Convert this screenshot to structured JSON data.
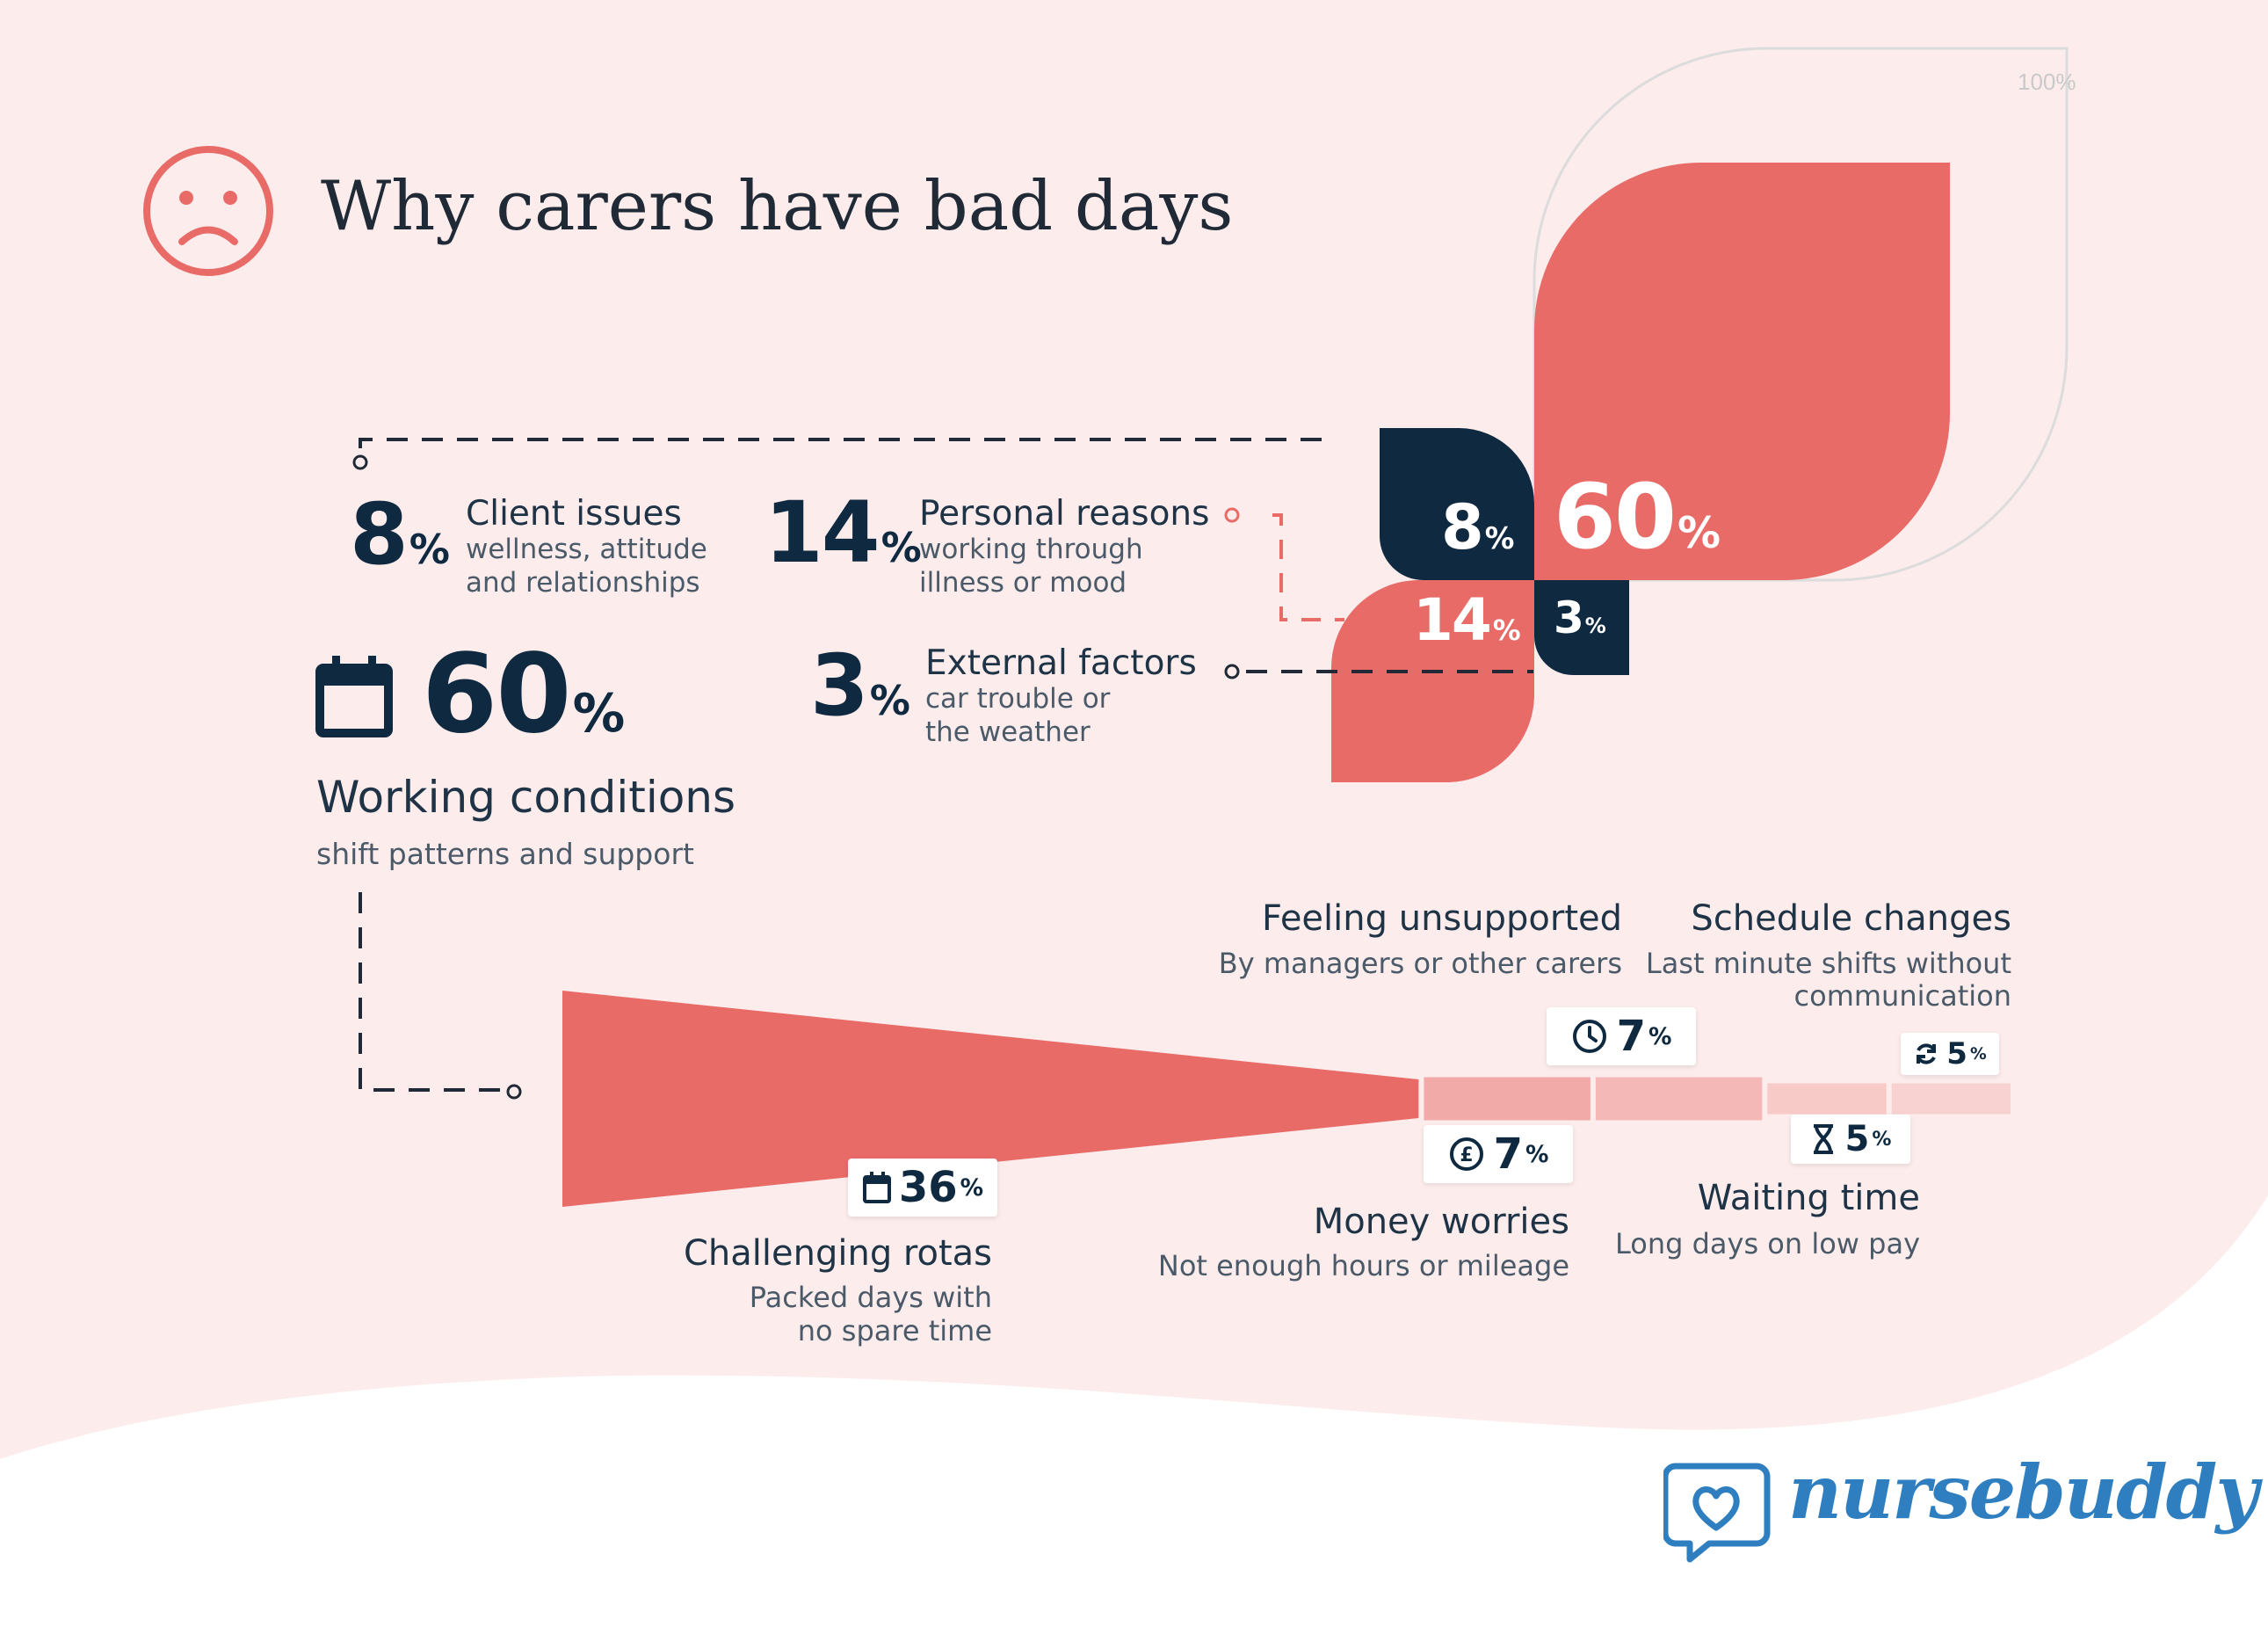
{
  "title": "Why carers have bad days",
  "colors": {
    "background": "#fdecec",
    "coral": "#e86b68",
    "navy": "#0f2a40",
    "pale_coral": "#f2aaa8",
    "paler_coral": "#f7c9c7",
    "text_dark": "#1f3346",
    "text_muted": "#4a5a68",
    "brand_blue": "#2f7fc0"
  },
  "icons": {
    "title": "sad-face-icon",
    "working_conditions": "calendar-icon",
    "challenging_rotas": "calendar-icon",
    "money_worries": "pound-coin-icon",
    "feeling_unsupported": "clock-icon",
    "waiting_time": "hourglass-icon",
    "schedule_changes": "refresh-icon"
  },
  "categories": {
    "client_issues": {
      "value": "8",
      "pct": "%",
      "label": "Client issues",
      "desc_1": "wellness, attitude",
      "desc_2": "and relationships"
    },
    "personal_reasons": {
      "value": "14",
      "pct": "%",
      "label": "Personal reasons",
      "desc_1": "working through",
      "desc_2": "illness or mood"
    },
    "working_conditions": {
      "value": "60",
      "pct": "%",
      "label": "Working conditions",
      "desc": "shift patterns and support"
    },
    "external_factors": {
      "value": "3",
      "pct": "%",
      "label": "External factors",
      "desc_1": "car trouble or",
      "desc_2": "the weather"
    }
  },
  "breakdown": {
    "challenging_rotas": {
      "value": "36",
      "pct": "%",
      "label": "Challenging rotas",
      "desc_1": "Packed days with",
      "desc_2": "no spare time"
    },
    "money_worries": {
      "value": "7",
      "pct": "%",
      "label": "Money worries",
      "desc": "Not enough hours or mileage"
    },
    "feeling_unsupported": {
      "value": "7",
      "pct": "%",
      "label": "Feeling unsupported",
      "desc": "By managers or other carers"
    },
    "waiting_time": {
      "value": "5",
      "pct": "%",
      "label": "Waiting time",
      "desc": "Long days on low pay"
    },
    "schedule_changes": {
      "value": "5",
      "pct": "%",
      "label": "Schedule changes",
      "desc_1": "Last minute shifts without",
      "desc_2": "communication"
    }
  },
  "petal_labels": {
    "reference": "100%",
    "working_conditions": "60",
    "client_issues": "8",
    "personal_reasons": "14",
    "external_factors": "3",
    "pct": "%"
  },
  "brand": {
    "name": "nursebuddy"
  },
  "chart_data": [
    {
      "type": "area",
      "categories": [
        "Working conditions",
        "Personal reasons",
        "Client issues",
        "External factors"
      ],
      "values": [
        60,
        14,
        8,
        3
      ],
      "reference_max": 100,
      "title": "Why carers have bad days"
    },
    {
      "type": "bar",
      "categories": [
        "Challenging rotas",
        "Money worries",
        "Feeling unsupported",
        "Waiting time",
        "Schedule changes"
      ],
      "values": [
        36,
        7,
        7,
        5,
        5
      ]
    }
  ]
}
